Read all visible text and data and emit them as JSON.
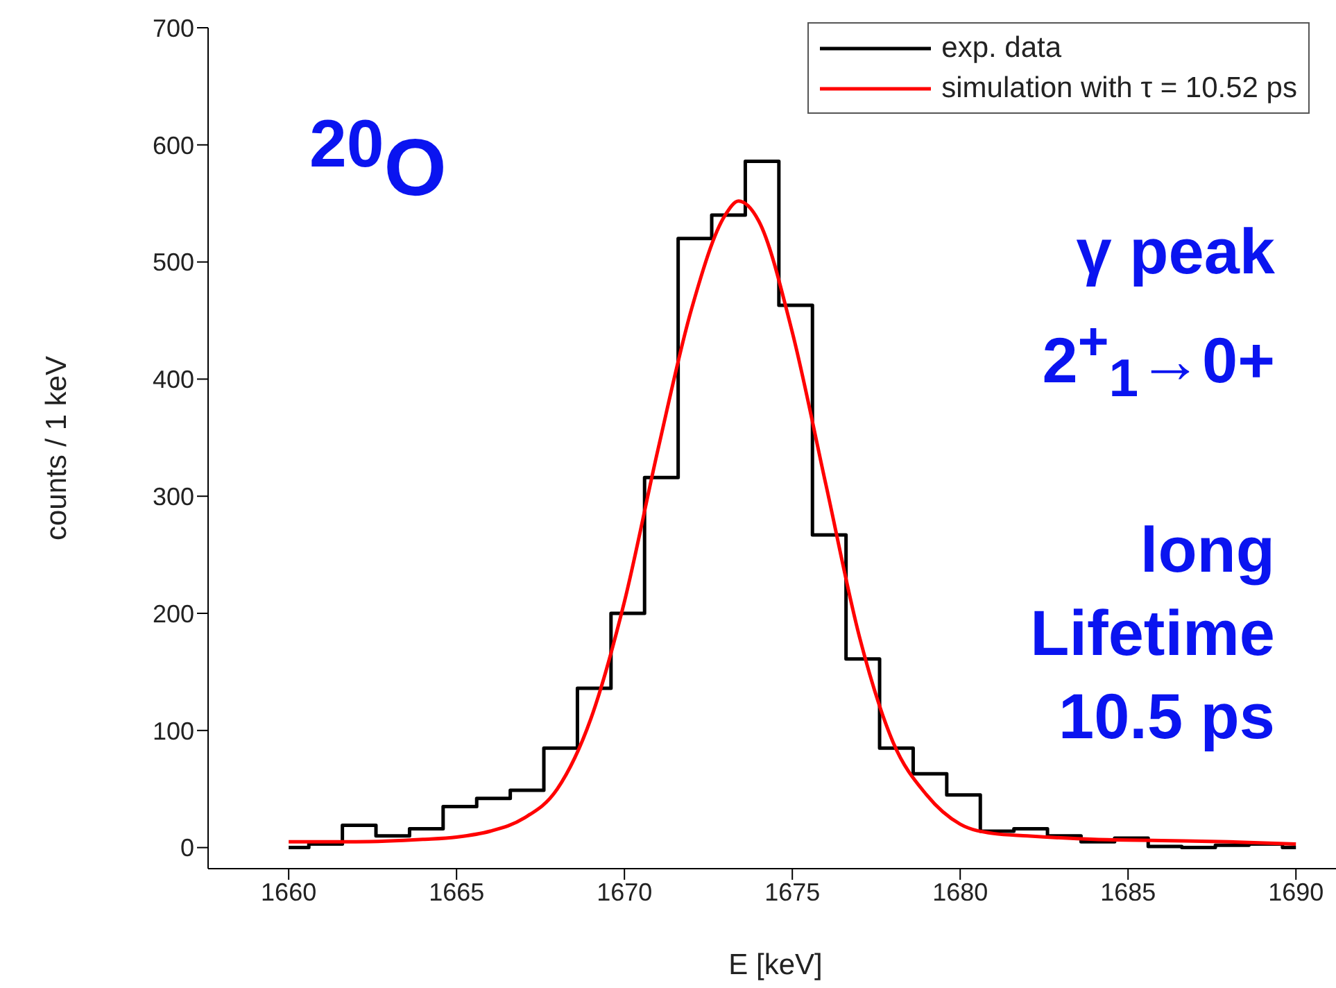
{
  "chart_data": {
    "type": "histogram",
    "xlabel": "E [keV]",
    "ylabel": "counts / 1 keV",
    "bins": [
      1660,
      1660.6,
      1661.6,
      1662.6,
      1663.6,
      1664.6,
      1665.6,
      1666.6,
      1667.6,
      1668.6,
      1669.6,
      1670.6,
      1671.6,
      1672.6,
      1673.6,
      1674.6,
      1675.6,
      1676.6,
      1677.6,
      1678.6,
      1679.6,
      1680.6,
      1681.6,
      1682.6,
      1683.6,
      1684.6,
      1685.6,
      1686.6,
      1687.6,
      1688.6,
      1689.6,
      1690
    ],
    "series": [
      {
        "name": "exp. data",
        "color": "#000000",
        "values": [
          0,
          3,
          19,
          10,
          16,
          35,
          42,
          49,
          85,
          136,
          200,
          316,
          520,
          540,
          586,
          463,
          267,
          161,
          85,
          63,
          45,
          14,
          16,
          10,
          5,
          8,
          1,
          0,
          2,
          3,
          0
        ]
      },
      {
        "type": "line",
        "name": "simulation with τ = 10.52 ps",
        "color": "#ff0000",
        "x": [
          1660,
          1662,
          1664,
          1665,
          1666,
          1667,
          1668,
          1669,
          1670,
          1671,
          1672,
          1673,
          1673.4,
          1674,
          1675,
          1676,
          1677,
          1678,
          1679,
          1680,
          1681,
          1682,
          1684,
          1686,
          1688,
          1690
        ],
        "values": [
          5,
          5,
          7,
          9,
          14,
          25,
          50,
          110,
          210,
          340,
          460,
          540,
          552,
          535,
          440,
          310,
          180,
          90,
          45,
          20,
          12,
          10,
          7,
          6,
          5,
          3
        ]
      }
    ],
    "xlim": [
      1657.6,
      1691.4
    ],
    "xticks": [
      1660,
      1665,
      1670,
      1675,
      1680,
      1685,
      1690
    ],
    "ylim": [
      -18,
      700
    ],
    "yticks": [
      0,
      100,
      200,
      300,
      400,
      500,
      600,
      700
    ],
    "legend": "top right",
    "annotations": [
      "$^{20}$O",
      "γ peak",
      "2$^{+}$$_{1}$→0+",
      "long",
      "Lifetime",
      "10.5 ps"
    ]
  }
}
